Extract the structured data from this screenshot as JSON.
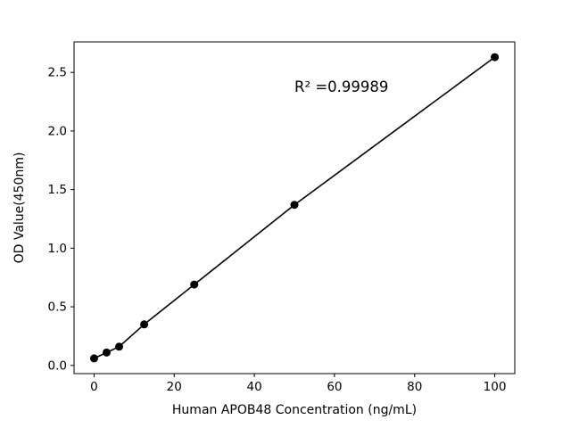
{
  "chart_data": {
    "type": "scatter",
    "title": "",
    "xlabel": "Human APOB48 Concentration (ng/mL)",
    "ylabel": "OD Value(450nm)",
    "annotation": "R² =0.99989",
    "annotation_pos": [
      0.5,
      0.15
    ],
    "x": [
      0,
      3.125,
      6.25,
      12.5,
      25,
      50,
      100
    ],
    "y": [
      0.06,
      0.11,
      0.16,
      0.35,
      0.69,
      1.37,
      2.63
    ],
    "xlim": [
      -5,
      105
    ],
    "ylim": [
      -0.07,
      2.76
    ],
    "xticks": [
      0,
      20,
      40,
      60,
      80,
      100
    ],
    "yticks": [
      0.0,
      0.5,
      1.0,
      1.5,
      2.0,
      2.5
    ],
    "ytick_decimals": 1,
    "line": true,
    "grid": false,
    "legend": "none",
    "marker_color": "#000000",
    "line_color": "#000000",
    "axis_color": "#000000",
    "background": "#ffffff"
  }
}
